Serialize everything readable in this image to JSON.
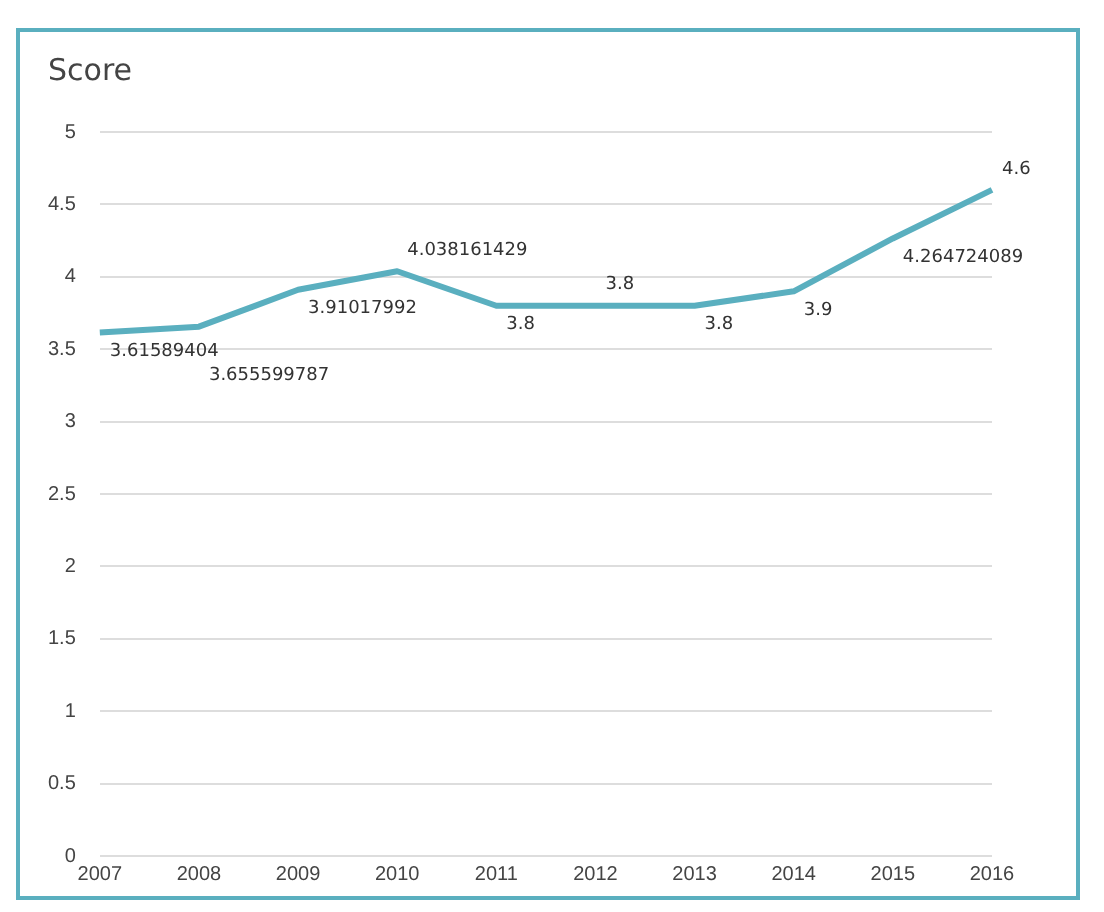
{
  "chart_data": {
    "type": "line",
    "title": "Score",
    "categories": [
      "2007",
      "2008",
      "2009",
      "2010",
      "2011",
      "2012",
      "2013",
      "2014",
      "2015",
      "2016"
    ],
    "series": [
      {
        "color": "#5aafbf",
        "values": [
          3.61589404,
          3.655599787,
          3.91017992,
          4.038161429,
          3.8,
          3.8,
          3.8,
          3.9,
          4.264724089,
          4.6
        ]
      }
    ],
    "data_labels": true,
    "ylim": [
      0,
      5
    ],
    "yticks": [
      0,
      0.5,
      1,
      1.5,
      2,
      2.5,
      3,
      3.5,
      4,
      4.5,
      5
    ],
    "grid": "y",
    "legend": false,
    "marker": "none",
    "line_style": "solid"
  }
}
